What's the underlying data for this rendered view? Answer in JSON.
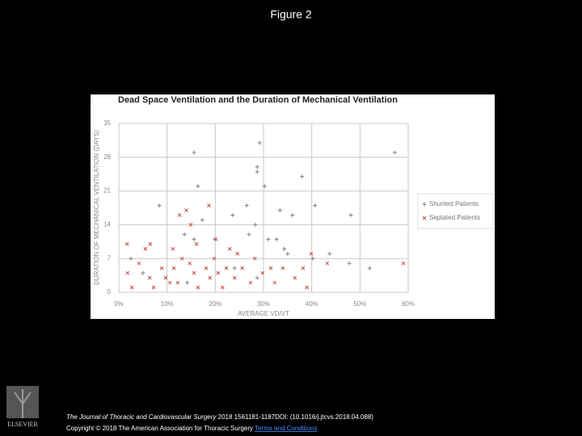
{
  "slide_title": "Figure 2",
  "chart_data": {
    "type": "scatter",
    "title": "Dead Space Ventilation and the Duration of Mechanical Ventilation",
    "x_label": "AVERAGE VD/VT",
    "y_label": "DURATION OF MECHANICAL VENTILATION (DAYS)",
    "xlim": [
      0,
      60
    ],
    "ylim": [
      0,
      35
    ],
    "xticks": [
      {
        "value": 0,
        "label": "0%"
      },
      {
        "value": 10,
        "label": "10%"
      },
      {
        "value": 20,
        "label": "20%"
      },
      {
        "value": 30,
        "label": "30%"
      },
      {
        "value": 40,
        "label": "40%"
      },
      {
        "value": 50,
        "label": "50%"
      },
      {
        "value": 60,
        "label": "60%"
      }
    ],
    "yticks": [
      0,
      7,
      14,
      21,
      28,
      35
    ],
    "grid": true,
    "legend": "right",
    "series": [
      {
        "name": "Shunted Patients",
        "marker": "plus",
        "color": "#7f7f7f",
        "x": [
          15.6,
          29.2,
          28.7,
          28.7,
          57.2,
          38.0,
          16.4,
          30.2,
          8.4,
          40.7,
          26.5,
          23.6,
          33.4,
          36.0,
          48.1,
          17.3,
          28.3,
          13.6,
          15.6,
          27.0,
          19.9,
          31.0,
          32.7,
          34.3,
          43.7,
          47.8,
          52.0,
          2.5,
          5.0,
          24.0,
          28.7,
          40.2,
          14.2,
          35.0
        ],
        "values": [
          29,
          31,
          26,
          25,
          29,
          24,
          22,
          22,
          18,
          18,
          18,
          16,
          17,
          16,
          16,
          15,
          14,
          12,
          11,
          12,
          11,
          11,
          11,
          9,
          8,
          6,
          5,
          7,
          4,
          5,
          3,
          7,
          2,
          8
        ]
      },
      {
        "name": "Septated Patients",
        "marker": "cross",
        "color": "#c0504d",
        "x": [
          14.0,
          12.6,
          14.9,
          18.7,
          1.7,
          5.5,
          11.2,
          16.1,
          20.1,
          23.0,
          24.6,
          39.9,
          59.0,
          4.2,
          1.8,
          2.7,
          6.4,
          8.9,
          9.7,
          11.4,
          12.2,
          14.7,
          15.6,
          16.4,
          18.1,
          18.9,
          19.8,
          20.6,
          21.5,
          22.3,
          24.0,
          25.6,
          27.3,
          28.2,
          29.8,
          31.5,
          32.3,
          34.0,
          36.5,
          38.2,
          39.0,
          43.2,
          10.6,
          7.2,
          13.1,
          6.5
        ],
        "values": [
          17,
          16,
          14,
          18,
          10,
          9,
          9,
          10,
          11,
          9,
          8,
          8,
          6,
          6,
          4,
          1,
          3,
          5,
          3,
          5,
          2,
          6,
          4,
          1,
          5,
          3,
          7,
          4,
          1,
          5,
          3,
          5,
          2,
          7,
          4,
          5,
          2,
          5,
          3,
          5,
          1,
          6,
          2,
          1,
          7,
          10
        ]
      }
    ]
  },
  "footer": {
    "journal": "The Journal of Thoracic and Cardiovascular Surgery",
    "citation": "2018 1561181-1187DOI: (10.1016/j.jtcvs.2018.04.088)",
    "copyright": "Copyright © 2018 The American Association for Thoracic Surgery",
    "link": "Terms and Conditions"
  },
  "logo": {
    "text": "ELSEVIER"
  }
}
